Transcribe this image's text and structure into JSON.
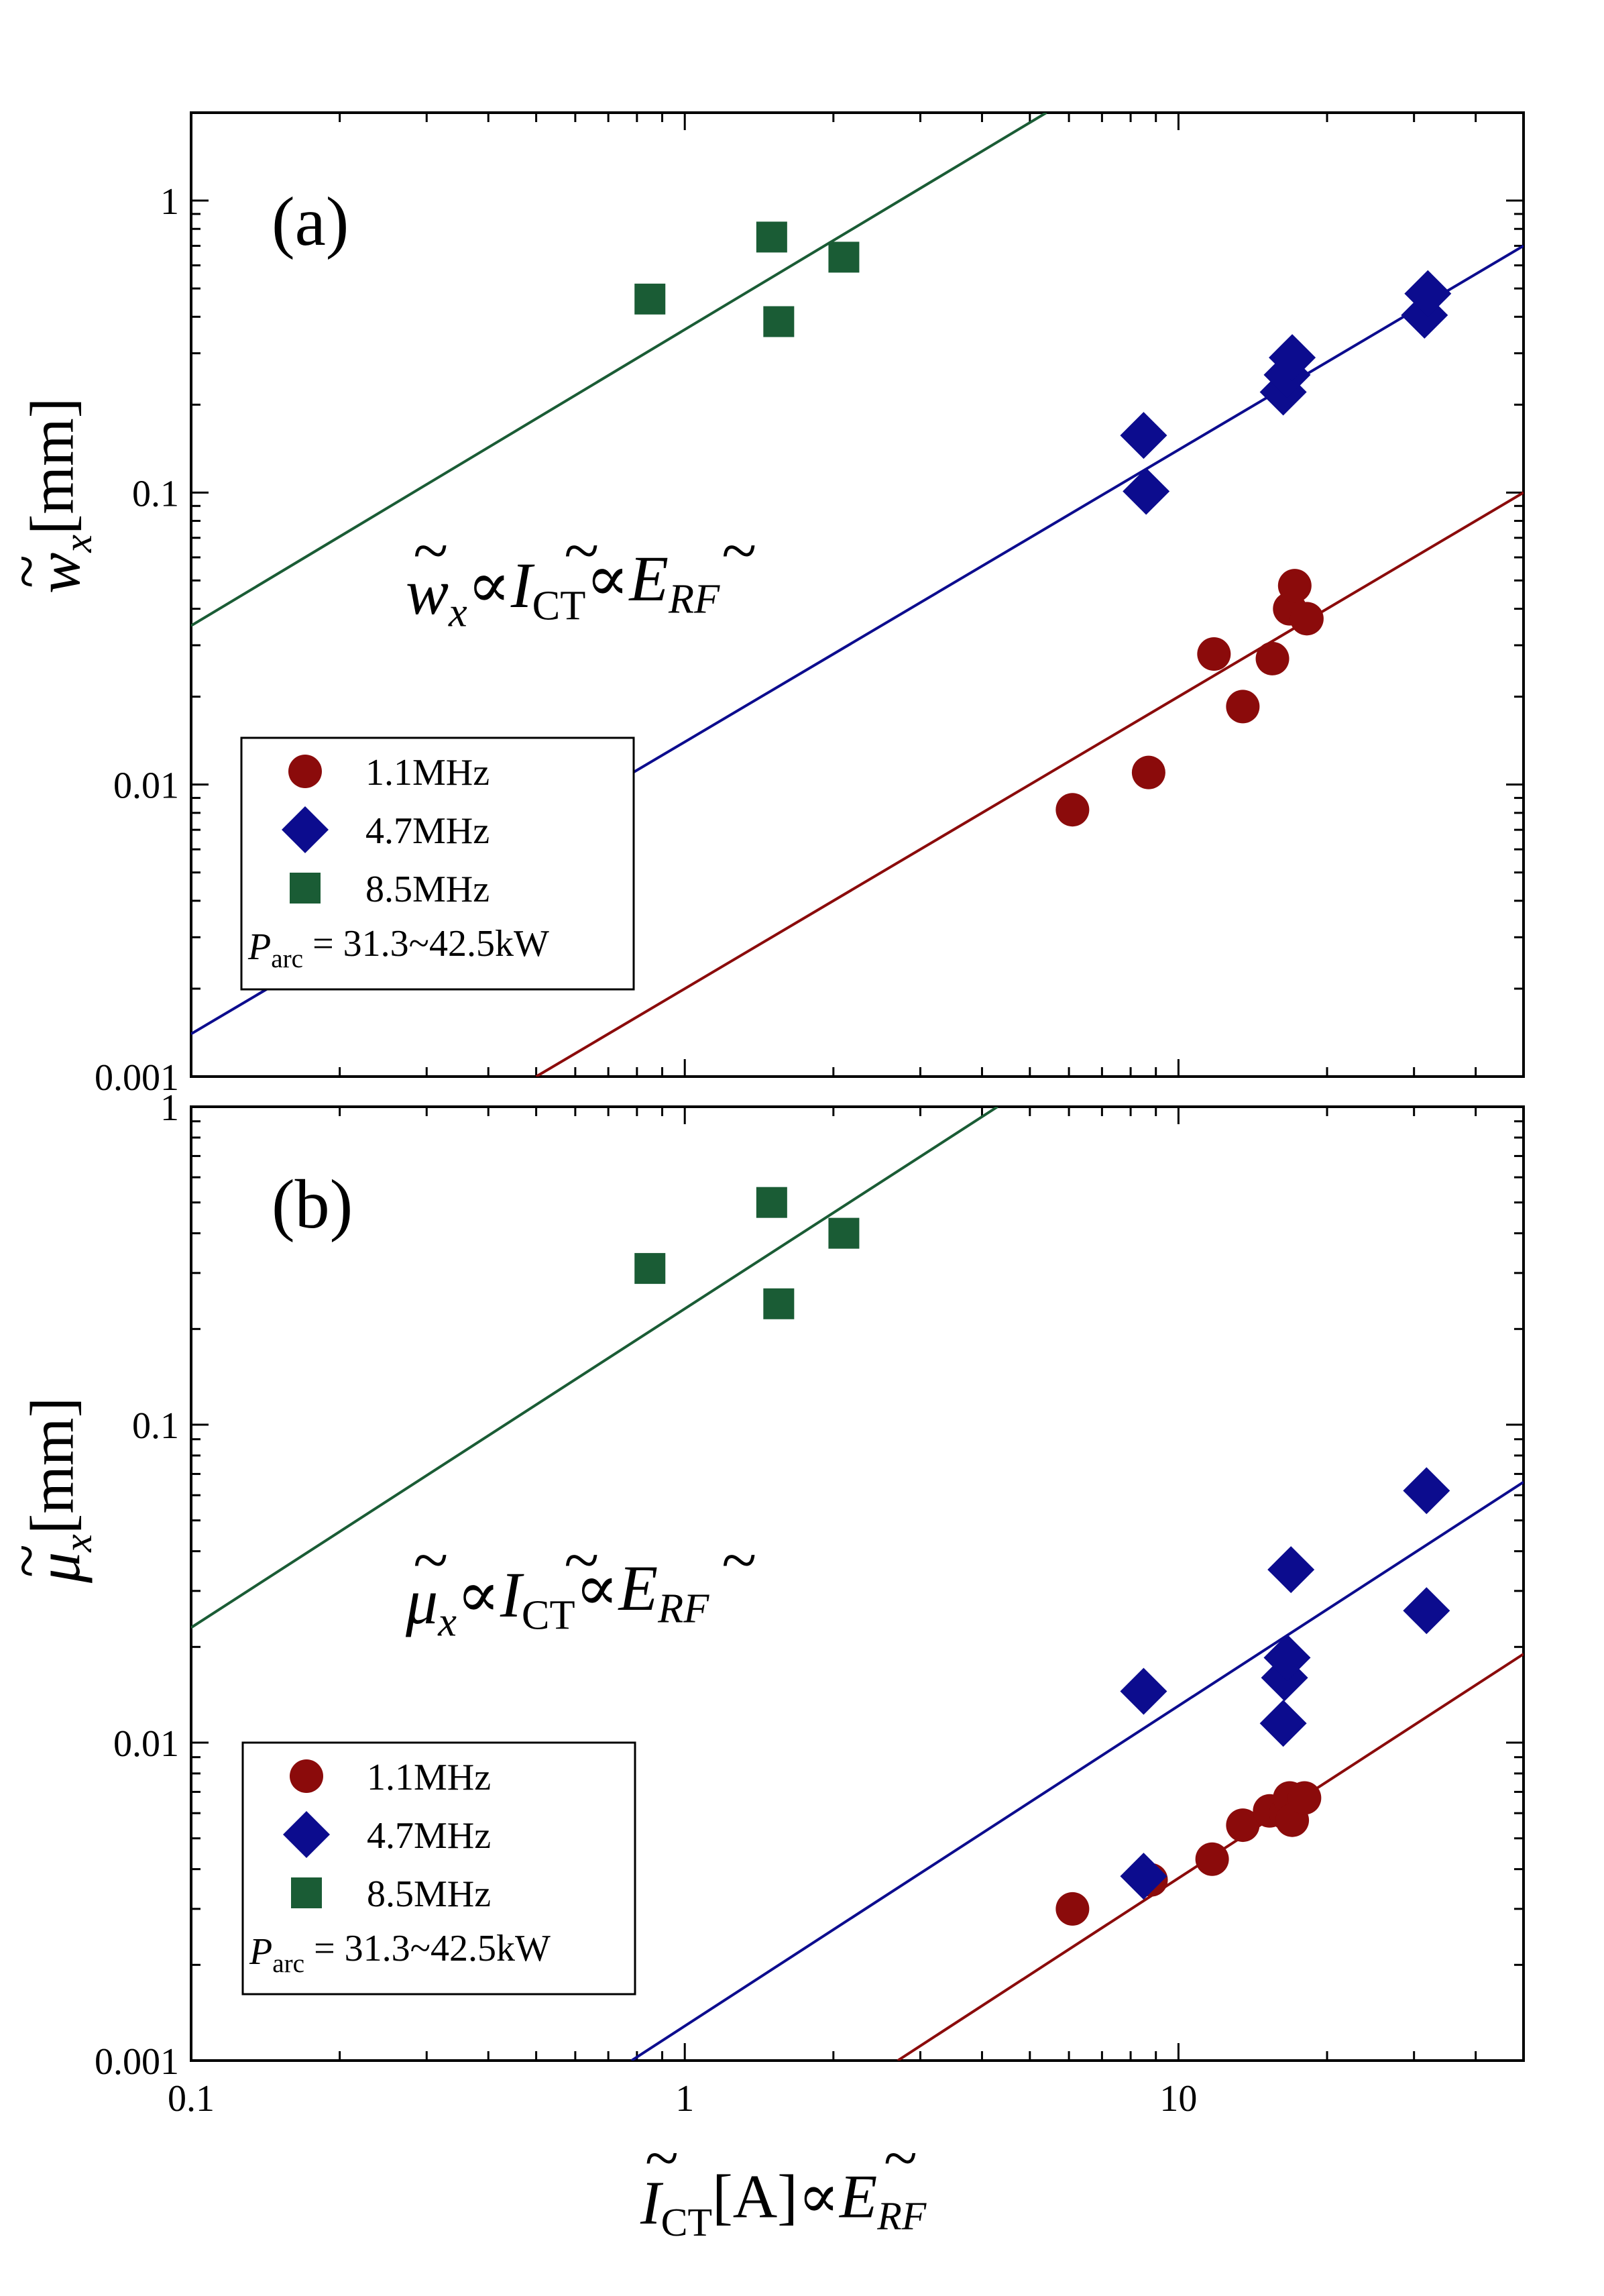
{
  "chart_data": [
    {
      "panel": "(a)",
      "type": "scatter",
      "xscale": "log",
      "yscale": "log",
      "xlim": [
        0.1,
        50
      ],
      "ylim": [
        0.001,
        2
      ],
      "ylabel": {
        "tilde": "~",
        "main": "w",
        "sub": "x",
        "unit": "[mm]"
      },
      "yticks": [
        {
          "v": 0.001,
          "label": "0.001"
        },
        {
          "v": 0.01,
          "label": "0.01"
        },
        {
          "v": 0.1,
          "label": "0.1"
        },
        {
          "v": 1,
          "label": "1"
        }
      ],
      "equation": {
        "lhs": "w",
        "lhs_sub": "x",
        "prop": "∝",
        "mid": "I",
        "mid_sub": "CT",
        "rhs": "E",
        "rhs_sub": "RF",
        "tilde": "~"
      },
      "legend_position": "lower-left",
      "legend_note": {
        "p": "P",
        "sub": "arc",
        "rest": " = 31.3~42.5kW"
      },
      "series": [
        {
          "name": "1.1MHz",
          "marker": "circle",
          "color": "#8b0b0b",
          "x": [
            6.1,
            8.7,
            11.8,
            13.5,
            15.5,
            16.8,
            17.2,
            18.2
          ],
          "y": [
            0.0082,
            0.011,
            0.028,
            0.0185,
            0.027,
            0.04,
            0.048,
            0.037
          ],
          "fit": {
            "x": [
              0.5,
              50
            ],
            "y": [
              0.001,
              0.1
            ]
          }
        },
        {
          "name": "4.7MHz",
          "marker": "diamond",
          "color": "#0c0c8e",
          "x": [
            8.5,
            8.6,
            16.3,
            16.6,
            17.0,
            31.5,
            32.0
          ],
          "y": [
            0.157,
            0.101,
            0.221,
            0.253,
            0.29,
            0.405,
            0.48
          ],
          "fit": {
            "x": [
              0.1,
              50
            ],
            "y": [
              0.0014,
              0.7
            ]
          }
        },
        {
          "name": "8.5MHz",
          "marker": "square",
          "color": "#1a5c35",
          "x": [
            0.85,
            1.5,
            1.55,
            2.1
          ],
          "y": [
            0.46,
            0.75,
            0.385,
            0.64
          ],
          "fit": {
            "x": [
              0.1,
              5.4
            ],
            "y": [
              0.035,
              2
            ]
          }
        }
      ]
    },
    {
      "panel": "(b)",
      "type": "scatter",
      "xscale": "log",
      "yscale": "log",
      "xlim": [
        0.1,
        50
      ],
      "ylim": [
        0.001,
        1
      ],
      "xlabel": {
        "tilde": "~",
        "main": "I",
        "sub": "CT",
        "unit": "[A]",
        "prop": "∝",
        "rhs": "E",
        "rhs_sub": "RF"
      },
      "xticks": [
        {
          "v": 0.1,
          "label": "0.1"
        },
        {
          "v": 1,
          "label": "1"
        },
        {
          "v": 10,
          "label": "10"
        }
      ],
      "ylabel": {
        "tilde": "~",
        "main": "μ",
        "sub": "x",
        "unit": "[mm]"
      },
      "yticks": [
        {
          "v": 0.001,
          "label": "0.001"
        },
        {
          "v": 0.01,
          "label": "0.01"
        },
        {
          "v": 0.1,
          "label": "0.1"
        },
        {
          "v": 1,
          "label": "1"
        }
      ],
      "equation": {
        "lhs": "μ",
        "lhs_sub": "x",
        "prop": "∝",
        "mid": "I",
        "mid_sub": "CT",
        "rhs": "E",
        "rhs_sub": "RF",
        "tilde": "~"
      },
      "legend_position": "lower-left",
      "legend_note": {
        "p": "P",
        "sub": "arc",
        "rest": " = 31.3~42.5kW"
      },
      "series": [
        {
          "name": "1.1MHz",
          "marker": "circle",
          "color": "#8b0b0b",
          "x": [
            6.1,
            8.8,
            11.7,
            13.5,
            15.3,
            16.5,
            16.8,
            17.0,
            18.0
          ],
          "y": [
            0.003,
            0.0037,
            0.0043,
            0.0055,
            0.0061,
            0.006,
            0.0067,
            0.0057,
            0.0067
          ],
          "fit": {
            "x": [
              2.7,
              50
            ],
            "y": [
              0.001,
              0.019
            ]
          }
        },
        {
          "name": "4.7MHz",
          "marker": "diamond",
          "color": "#0c0c8e",
          "x": [
            8.5,
            8.5,
            16.3,
            16.4,
            16.6,
            16.9,
            31.8,
            31.8
          ],
          "y": [
            0.0145,
            0.0038,
            0.0115,
            0.016,
            0.0185,
            0.035,
            0.062,
            0.026
          ],
          "fit": {
            "x": [
              0.78,
              50
            ],
            "y": [
              0.001,
              0.066
            ]
          }
        },
        {
          "name": "8.5MHz",
          "marker": "square",
          "color": "#1a5c35",
          "x": [
            0.85,
            1.5,
            1.55,
            2.1
          ],
          "y": [
            0.31,
            0.5,
            0.24,
            0.4
          ],
          "fit": {
            "x": [
              0.1,
              4.3
            ],
            "y": [
              0.023,
              1
            ]
          }
        }
      ]
    }
  ]
}
